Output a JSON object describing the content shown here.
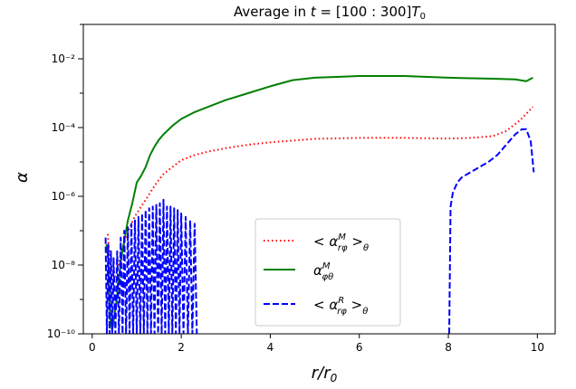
{
  "chart_data": {
    "type": "line",
    "title": "Average in t = [100 : 300]T₀",
    "xlabel": "r/r₀",
    "ylabel": "α",
    "xlim": [
      -0.2,
      10.4
    ],
    "ylim_log10": [
      -10,
      -1
    ],
    "yscale": "log",
    "grid": false,
    "legend_position": "lower-center",
    "x_ticks": [
      "0",
      "2",
      "4",
      "6",
      "8",
      "10"
    ],
    "x_tick_values": [
      0,
      2,
      4,
      6,
      8,
      10
    ],
    "y_ticks": [
      "10⁻¹⁰",
      "10⁻⁸",
      "10⁻⁶",
      "10⁻⁴",
      "10⁻²"
    ],
    "y_tick_values": [
      -10,
      -8,
      -6,
      -4,
      -2
    ],
    "series": [
      {
        "name": "< αᴹ rφ >θ",
        "color": "#ff0000",
        "style": "dotted",
        "x": [
          0.35,
          0.45,
          0.55,
          0.65,
          0.75,
          0.85,
          0.95,
          1.05,
          1.15,
          1.3,
          1.45,
          1.6,
          1.8,
          2.0,
          2.3,
          2.6,
          3.0,
          3.5,
          4.0,
          4.5,
          5.0,
          6.0,
          7.0,
          8.0,
          8.5,
          9.0,
          9.3,
          9.6,
          9.9
        ],
        "y": [
          -7.1,
          -8.6,
          -8.2,
          -7.7,
          -7.2,
          -6.9,
          -6.6,
          -6.4,
          -6.2,
          -5.9,
          -5.6,
          -5.35,
          -5.15,
          -4.95,
          -4.8,
          -4.7,
          -4.6,
          -4.5,
          -4.43,
          -4.38,
          -4.33,
          -4.3,
          -4.3,
          -4.32,
          -4.3,
          -4.25,
          -4.1,
          -3.8,
          -3.4
        ]
      },
      {
        "name": "αᴹ φθ",
        "color": "#008000",
        "style": "solid",
        "x": [
          0.32,
          0.36,
          0.4,
          0.45,
          0.55,
          0.65,
          0.8,
          0.9,
          1.0,
          1.1,
          1.2,
          1.3,
          1.4,
          1.5,
          1.6,
          1.8,
          2.0,
          2.3,
          2.6,
          3.0,
          3.5,
          4.0,
          4.5,
          5.0,
          6.0,
          7.0,
          8.0,
          9.0,
          9.5,
          9.75,
          9.9
        ],
        "y": [
          -7.4,
          -7.8,
          -9.5,
          -9.9,
          -9.0,
          -7.8,
          -6.7,
          -6.2,
          -5.6,
          -5.4,
          -5.15,
          -4.8,
          -4.55,
          -4.35,
          -4.2,
          -3.95,
          -3.75,
          -3.55,
          -3.4,
          -3.2,
          -3.0,
          -2.8,
          -2.62,
          -2.55,
          -2.5,
          -2.5,
          -2.55,
          -2.58,
          -2.6,
          -2.65,
          -2.55
        ]
      },
      {
        "name": "< αᴿ rφ >θ",
        "color": "#0000ff",
        "style": "dashed",
        "segments": [
          {
            "x": [
              0.3,
              0.33,
              0.36,
              0.39,
              0.42,
              0.45,
              0.48,
              0.52,
              0.56,
              0.6,
              0.64,
              0.68,
              0.72,
              0.76,
              0.8,
              0.84,
              0.88,
              0.92,
              0.96,
              1.0,
              1.04,
              1.08,
              1.12,
              1.16,
              1.2,
              1.24,
              1.28,
              1.32,
              1.36,
              1.4,
              1.44,
              1.48,
              1.52,
              1.56,
              1.6,
              1.64,
              1.68,
              1.72,
              1.76,
              1.8,
              1.84,
              1.88,
              1.92,
              1.96,
              2.0,
              2.05,
              2.1,
              2.15,
              2.2,
              2.25,
              2.3,
              2.35
            ],
            "y": [
              -7.2,
              -10,
              -7.4,
              -10,
              -7.6,
              -10,
              -7.8,
              -10,
              -7.6,
              -10,
              -7.2,
              -10,
              -7.0,
              -10,
              -6.9,
              -10,
              -6.8,
              -10,
              -6.7,
              -10,
              -6.6,
              -10,
              -6.5,
              -10,
              -6.4,
              -10,
              -6.35,
              -10,
              -6.3,
              -10,
              -6.25,
              -10,
              -6.2,
              -10,
              -6.1,
              -10,
              -6.3,
              -10,
              -6.3,
              -10,
              -6.35,
              -10,
              -6.4,
              -10,
              -6.5,
              -10,
              -6.6,
              -10,
              -6.7,
              -10,
              -6.8,
              -10
            ]
          },
          {
            "x": [
              8.02,
              8.05,
              8.1,
              8.2,
              8.3,
              8.5,
              8.7,
              8.9,
              9.1,
              9.3,
              9.5,
              9.65,
              9.75,
              9.85,
              9.92
            ],
            "y": [
              -10.0,
              -6.3,
              -5.9,
              -5.6,
              -5.45,
              -5.3,
              -5.15,
              -5.0,
              -4.8,
              -4.5,
              -4.2,
              -4.05,
              -4.05,
              -4.4,
              -5.3
            ]
          }
        ]
      }
    ]
  }
}
